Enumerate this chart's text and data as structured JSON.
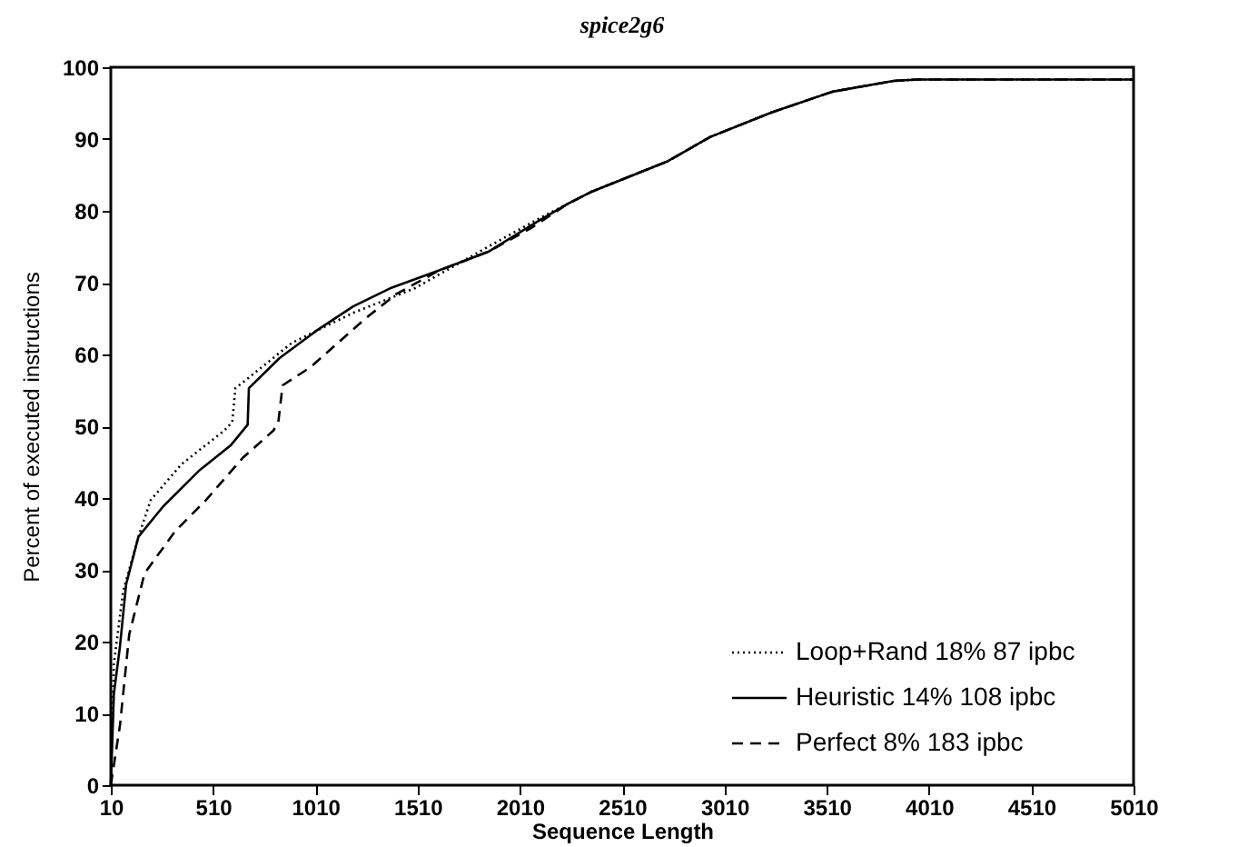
{
  "chart_data": {
    "type": "line",
    "title": "spice2g6",
    "xlabel": "Sequence Length",
    "ylabel": "Percent of executed instructions",
    "xlim": [
      10,
      5010
    ],
    "xticks": [
      10,
      510,
      1010,
      1510,
      2010,
      2510,
      3010,
      3510,
      4010,
      4510,
      5010
    ],
    "ylim": [
      0,
      100
    ],
    "yticks": [
      0,
      10,
      20,
      30,
      40,
      50,
      60,
      70,
      80,
      90,
      100
    ],
    "grid": false,
    "legend": "bottom right",
    "series": [
      {
        "name": "Loop+Rand   18%   87 ipbc",
        "color": "#000000",
        "line_style": "dotted",
        "x": [
          10,
          25,
          70,
          145,
          205,
          355,
          565,
          604,
          619,
          655,
          895,
          1195,
          1495,
          1855,
          2095,
          2245,
          2363,
          2732,
          2941,
          3240,
          3538,
          3837,
          3956,
          5010
        ],
        "values": [
          0,
          16.9,
          27,
          34.6,
          39.7,
          44.7,
          49.4,
          50.6,
          55.3,
          56.1,
          61.6,
          65.8,
          69.2,
          75,
          78.8,
          81,
          82.7,
          86.9,
          90.3,
          93.7,
          96.6,
          98.1,
          98.3,
          98.3
        ]
      },
      {
        "name": "Heuristic   14%   108 ipbc",
        "color": "#000000",
        "line_style": "solid",
        "x": [
          10,
          25,
          55,
          85,
          145,
          265,
          445,
          595,
          679,
          685,
          835,
          1015,
          1195,
          1375,
          1615,
          1855,
          2095,
          2245,
          2363,
          2732,
          2941,
          3240,
          3538,
          3837,
          3956,
          5010
        ],
        "values": [
          0,
          12.7,
          19.4,
          28,
          34.6,
          38.8,
          43.9,
          47.3,
          50.2,
          55.3,
          59.5,
          63.3,
          66.7,
          69.2,
          71.7,
          74.3,
          78.5,
          81,
          82.7,
          86.9,
          90.3,
          93.7,
          96.6,
          98.1,
          98.3,
          98.3
        ]
      },
      {
        "name": "Perfect   8%   183 ipbc",
        "color": "#000000",
        "line_style": "dashed",
        "x": [
          10,
          55,
          100,
          175,
          325,
          475,
          655,
          805,
          829,
          850,
          985,
          1255,
          1405,
          1615,
          1855,
          2065,
          2245,
          2363,
          2732,
          2941,
          3240,
          3538,
          3837,
          3956,
          5010
        ],
        "values": [
          0,
          8.4,
          21,
          29.5,
          35.4,
          39.7,
          45.6,
          49.4,
          50.6,
          55.7,
          58.2,
          65,
          68.4,
          71.7,
          74.3,
          77.6,
          81,
          82.7,
          86.9,
          90.3,
          93.7,
          96.6,
          98.1,
          98.3,
          98.3
        ]
      }
    ]
  }
}
